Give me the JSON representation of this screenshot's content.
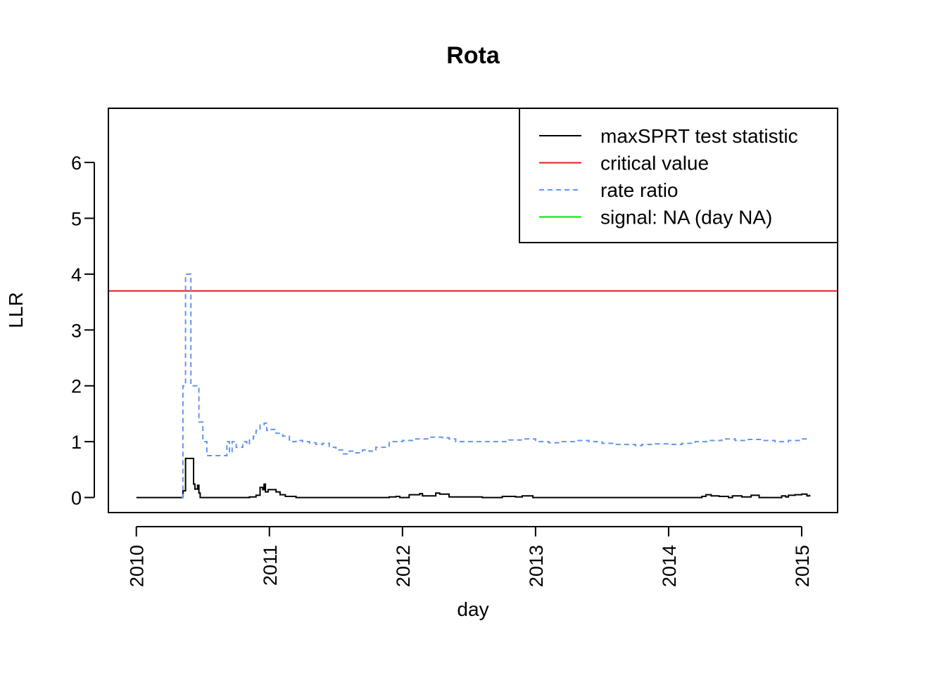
{
  "chart_data": {
    "type": "line",
    "title": "Rota",
    "xlabel": "day",
    "ylabel": "LLR",
    "xlim": [
      2009.79,
      2015.27
    ],
    "ylim": [
      -0.27,
      6.97
    ],
    "x_ticks": [
      {
        "value": 2010,
        "label": "2010"
      },
      {
        "value": 2011,
        "label": "2011"
      },
      {
        "value": 2012,
        "label": "2012"
      },
      {
        "value": 2013,
        "label": "2013"
      },
      {
        "value": 2014,
        "label": "2014"
      },
      {
        "value": 2015,
        "label": "2015"
      }
    ],
    "y_ticks": [
      {
        "value": 0,
        "label": "0"
      },
      {
        "value": 1,
        "label": "1"
      },
      {
        "value": 2,
        "label": "2"
      },
      {
        "value": 3,
        "label": "3"
      },
      {
        "value": 4,
        "label": "4"
      },
      {
        "value": 5,
        "label": "5"
      },
      {
        "value": 6,
        "label": "6"
      }
    ],
    "grid": false,
    "legend": {
      "position": "top-right",
      "entries": [
        {
          "label": "maxSPRT test statistic",
          "color": "#000000",
          "dash": "solid"
        },
        {
          "label": "critical value",
          "color": "#e41a1c",
          "dash": "solid"
        },
        {
          "label": "rate ratio",
          "color": "#6495ed",
          "dash": "dashed"
        },
        {
          "label": "signal: NA (day NA)",
          "color": "#00e600",
          "dash": "solid"
        }
      ]
    },
    "critical_value": 3.7,
    "series": [
      {
        "name": "maxSPRT test statistic",
        "color": "#000000",
        "dash": "solid",
        "step": true,
        "x": [
          2010.0,
          2010.34,
          2010.35,
          2010.37,
          2010.38,
          2010.43,
          2010.44,
          2010.46,
          2010.47,
          2010.48,
          2010.5,
          2010.8,
          2010.85,
          2010.9,
          2010.93,
          2010.95,
          2010.96,
          2010.97,
          2010.99,
          2011.0,
          2011.05,
          2011.08,
          2011.12,
          2011.2,
          2011.5,
          2011.8,
          2011.9,
          2011.95,
          2011.98,
          2012.05,
          2012.13,
          2012.15,
          2012.25,
          2012.28,
          2012.35,
          2012.6,
          2012.75,
          2012.85,
          2012.9,
          2012.98,
          2013.2,
          2013.5,
          2013.8,
          2014.25,
          2014.28,
          2014.32,
          2014.38,
          2014.45,
          2014.48,
          2014.55,
          2014.62,
          2014.68,
          2014.8,
          2014.85,
          2014.88,
          2014.9,
          2014.95,
          2015.0,
          2015.04,
          2015.06
        ],
        "values": [
          0.0,
          0.0,
          0.12,
          0.7,
          0.7,
          0.24,
          0.15,
          0.22,
          0.08,
          0.0,
          0.0,
          0.0,
          0.01,
          0.04,
          0.18,
          0.14,
          0.24,
          0.1,
          0.14,
          0.14,
          0.1,
          0.05,
          0.02,
          0.0,
          0.0,
          0.0,
          0.01,
          0.02,
          0.0,
          0.05,
          0.07,
          0.03,
          0.08,
          0.06,
          0.01,
          0.0,
          0.02,
          0.01,
          0.03,
          0.0,
          0.0,
          0.0,
          0.0,
          0.02,
          0.05,
          0.03,
          0.02,
          0.0,
          0.03,
          0.01,
          0.04,
          0.0,
          0.0,
          0.03,
          0.01,
          0.04,
          0.05,
          0.06,
          0.03,
          0.05
        ]
      },
      {
        "name": "rate ratio",
        "color": "#6495ed",
        "dash": "dashed",
        "step": true,
        "x": [
          2010.34,
          2010.35,
          2010.37,
          2010.39,
          2010.41,
          2010.43,
          2010.45,
          2010.47,
          2010.5,
          2010.53,
          2010.6,
          2010.65,
          2010.68,
          2010.7,
          2010.72,
          2010.75,
          2010.8,
          2010.83,
          2010.85,
          2010.88,
          2010.9,
          2010.93,
          2010.96,
          2010.98,
          2011.0,
          2011.05,
          2011.1,
          2011.15,
          2011.2,
          2011.25,
          2011.3,
          2011.35,
          2011.4,
          2011.45,
          2011.5,
          2011.55,
          2011.6,
          2011.65,
          2011.7,
          2011.75,
          2011.8,
          2011.9,
          2012.0,
          2012.1,
          2012.2,
          2012.3,
          2012.35,
          2012.4,
          2012.6,
          2012.8,
          2012.9,
          2013.0,
          2013.1,
          2013.2,
          2013.3,
          2013.4,
          2013.5,
          2013.6,
          2013.7,
          2013.75,
          2013.8,
          2013.9,
          2014.0,
          2014.1,
          2014.2,
          2014.3,
          2014.4,
          2014.5,
          2014.6,
          2014.7,
          2014.8,
          2014.9,
          2015.0,
          2015.05
        ],
        "values": [
          0.0,
          2.0,
          4.0,
          4.0,
          2.0,
          2.0,
          2.0,
          1.35,
          1.0,
          0.75,
          0.75,
          0.75,
          1.0,
          0.8,
          1.0,
          0.9,
          1.0,
          0.95,
          1.05,
          1.1,
          1.2,
          1.3,
          1.33,
          1.2,
          1.22,
          1.15,
          1.1,
          1.0,
          1.02,
          1.0,
          0.98,
          0.95,
          0.97,
          0.9,
          0.85,
          0.78,
          0.83,
          0.8,
          0.85,
          0.83,
          0.9,
          1.0,
          1.02,
          1.05,
          1.08,
          1.07,
          1.05,
          1.0,
          1.0,
          1.03,
          1.05,
          1.0,
          0.98,
          1.0,
          1.02,
          1.0,
          0.97,
          0.95,
          0.95,
          0.93,
          0.95,
          0.96,
          0.95,
          0.97,
          1.0,
          1.02,
          1.05,
          1.02,
          1.04,
          1.02,
          1.0,
          1.02,
          1.05,
          1.05
        ]
      }
    ]
  }
}
